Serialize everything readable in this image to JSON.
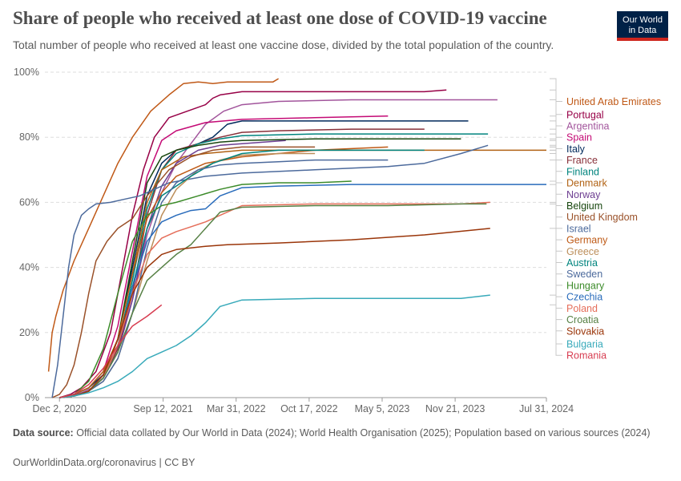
{
  "header": {
    "title": "Share of people who received at least one dose of COVID-19 vaccine",
    "subtitle": "Total number of people who received at least one vaccine dose, divided by the total population of the country.",
    "logo_line1": "Our World",
    "logo_line2": "in Data"
  },
  "footer": {
    "source_label": "Data source:",
    "source_text": "Official data collated by Our World in Data (2024); World Health Organisation (2025); Population based on various sources (2024)",
    "link_text": "OurWorldinData.org/coronavirus | CC BY"
  },
  "chart_data": {
    "type": "line",
    "title": "Share of people who received at least one dose of COVID-19 vaccine",
    "xlabel": "",
    "ylabel": "",
    "ylim": [
      0,
      100
    ],
    "y_ticks": [
      0,
      20,
      40,
      60,
      80,
      100
    ],
    "y_tick_labels": [
      "0%",
      "20%",
      "40%",
      "60%",
      "80%",
      "100%"
    ],
    "x_ticks": [
      0,
      284,
      484,
      684,
      884,
      1084,
      1334
    ],
    "x_tick_labels": [
      "Dec 2, 2020",
      "Sep 12, 2021",
      "Mar 31, 2022",
      "Oct 17, 2022",
      "May 5, 2023",
      "Nov 21, 2023",
      "Jul 31, 2024"
    ],
    "xlim": [
      -40,
      1334
    ],
    "x_unit": "days since Dec 2, 2020",
    "series": [
      {
        "name": "United Arab Emirates",
        "color": "#c05917",
        "label_y": 91,
        "x": [
          -30,
          -20,
          -10,
          10,
          40,
          80,
          120,
          160,
          200,
          250,
          300,
          340,
          380,
          420,
          460,
          540,
          585,
          600
        ],
        "y": [
          8,
          20,
          25,
          33,
          42,
          52,
          62,
          72,
          80,
          88,
          93,
          96.5,
          97,
          96.5,
          97,
          97,
          97,
          98
        ]
      },
      {
        "name": "Portugal",
        "color": "#970046",
        "label_y": 87,
        "x": [
          0,
          30,
          60,
          100,
          140,
          170,
          200,
          230,
          260,
          300,
          350,
          400,
          420,
          440,
          500,
          600,
          700,
          850,
          1000,
          1060
        ],
        "y": [
          0,
          1,
          3,
          8,
          20,
          38,
          56,
          70,
          80,
          86,
          88,
          90,
          92,
          93,
          94,
          94,
          94,
          94,
          94,
          94.5
        ]
      },
      {
        "name": "Argentina",
        "color": "#a2559c",
        "label_y": 83.5,
        "x": [
          0,
          30,
          60,
          90,
          120,
          160,
          200,
          240,
          280,
          320,
          360,
          400,
          450,
          500,
          600,
          800,
          1000,
          1200
        ],
        "y": [
          0,
          0.5,
          1.5,
          3,
          7,
          15,
          30,
          50,
          63,
          72,
          78,
          84,
          88,
          90,
          91,
          91.5,
          91.5,
          91.5
        ]
      },
      {
        "name": "Spain",
        "color": "#c40a75",
        "label_y": 80,
        "x": [
          0,
          40,
          80,
          120,
          160,
          200,
          240,
          280,
          320,
          400,
          500,
          700,
          900
        ],
        "y": [
          0,
          1,
          3,
          8,
          22,
          45,
          68,
          79,
          82,
          84.5,
          85.5,
          86,
          86.5
        ]
      },
      {
        "name": "Italy",
        "color": "#00295b",
        "label_y": 76.5,
        "x": [
          0,
          40,
          80,
          120,
          160,
          200,
          240,
          280,
          320,
          380,
          420,
          460,
          500,
          600,
          800,
          1000,
          1120
        ],
        "y": [
          0,
          1,
          3,
          7,
          18,
          40,
          62,
          72,
          76,
          78,
          80,
          84,
          85,
          85,
          85,
          85,
          85
        ]
      },
      {
        "name": "France",
        "color": "#883039",
        "label_y": 73,
        "x": [
          0,
          40,
          80,
          120,
          160,
          200,
          240,
          280,
          320,
          380,
          440,
          500,
          600,
          800,
          1000
        ],
        "y": [
          0,
          0.5,
          2,
          6,
          15,
          32,
          56,
          70,
          76,
          78,
          80,
          81.5,
          82,
          82.5,
          82.5
        ]
      },
      {
        "name": "Finland",
        "color": "#00847e",
        "label_y": 69.5,
        "x": [
          0,
          40,
          80,
          120,
          160,
          200,
          240,
          280,
          320,
          380,
          440,
          500,
          700,
          900,
          1050,
          1174
        ],
        "y": [
          0,
          0.5,
          2,
          6,
          16,
          36,
          58,
          70,
          75,
          78,
          79.5,
          80.5,
          81,
          81,
          81,
          81
        ]
      },
      {
        "name": "Denmark",
        "color": "#b16214",
        "label_y": 66,
        "x": [
          0,
          40,
          80,
          120,
          160,
          200,
          240,
          280,
          340,
          400,
          500,
          700,
          900,
          1100,
          1334
        ],
        "y": [
          0,
          1,
          3,
          8,
          18,
          38,
          60,
          70,
          74,
          75,
          76,
          76,
          76,
          76,
          76
        ]
      },
      {
        "name": "Norway",
        "color": "#6d3e91",
        "label_y": 62.5,
        "x": [
          0,
          40,
          80,
          120,
          160,
          200,
          240,
          280,
          320,
          380,
          440,
          500,
          560,
          620
        ],
        "y": [
          0,
          0.5,
          2,
          6,
          14,
          30,
          52,
          65,
          72,
          76,
          77.5,
          78,
          78.5,
          79
        ]
      },
      {
        "name": "Belgium",
        "color": "#18470f",
        "label_y": 59,
        "x": [
          0,
          40,
          80,
          120,
          160,
          200,
          240,
          280,
          320,
          380,
          440,
          500,
          700,
          900,
          1100
        ],
        "y": [
          0,
          0.5,
          2,
          6,
          18,
          42,
          66,
          74,
          76,
          77.5,
          78.5,
          79,
          79.5,
          79.5,
          79.5
        ]
      },
      {
        "name": "United Kingdom",
        "color": "#9a5129",
        "label_y": 55.5,
        "x": [
          -20,
          0,
          20,
          40,
          60,
          80,
          100,
          130,
          160,
          200,
          240,
          300,
          360,
          420,
          500,
          600,
          700
        ],
        "y": [
          0,
          1,
          4,
          10,
          20,
          32,
          42,
          48,
          52,
          55,
          62,
          70,
          74,
          76,
          77,
          77,
          77
        ]
      },
      {
        "name": "Israel",
        "color": "#4c6a9c",
        "label_y": 52,
        "x": [
          -20,
          -5,
          5,
          15,
          25,
          40,
          60,
          80,
          100,
          140,
          180,
          220,
          260,
          300,
          400,
          500,
          700,
          900,
          1000,
          1100,
          1174
        ],
        "y": [
          0,
          10,
          20,
          30,
          40,
          50,
          56,
          58,
          59.5,
          60,
          61,
          62,
          64,
          66,
          68,
          69,
          70,
          71,
          72,
          75,
          77.5
        ]
      },
      {
        "name": "Germany",
        "color": "#be5915",
        "label_y": 48.5,
        "x": [
          0,
          40,
          80,
          120,
          160,
          200,
          240,
          280,
          320,
          400,
          500,
          600,
          700,
          800,
          900
        ],
        "y": [
          0,
          0.5,
          2,
          6,
          18,
          38,
          55,
          63,
          68,
          72,
          74,
          75,
          76,
          76.5,
          77
        ]
      },
      {
        "name": "Greece",
        "color": "#bc8e5a",
        "label_y": 45,
        "x": [
          0,
          40,
          80,
          120,
          160,
          200,
          240,
          280,
          320,
          380,
          440,
          500,
          600,
          700
        ],
        "y": [
          0,
          0.5,
          2,
          5,
          12,
          26,
          42,
          56,
          64,
          70,
          73,
          74.5,
          75,
          75
        ]
      },
      {
        "name": "Austria",
        "color": "#00847e",
        "label_y": 41.5,
        "x": [
          0,
          40,
          80,
          120,
          160,
          200,
          240,
          280,
          320,
          360,
          420,
          500,
          600,
          800,
          1000
        ],
        "y": [
          0,
          0.5,
          2,
          6,
          16,
          34,
          52,
          62,
          65,
          68,
          72,
          75,
          76,
          76,
          76
        ]
      },
      {
        "name": "Sweden",
        "color": "#4c6a9c",
        "label_y": 38,
        "x": [
          0,
          40,
          80,
          120,
          160,
          200,
          240,
          280,
          320,
          380,
          440,
          500,
          600,
          700,
          800,
          900
        ],
        "y": [
          0,
          0.5,
          2,
          5,
          12,
          26,
          46,
          60,
          66,
          70,
          71.5,
          72,
          72.5,
          73,
          73,
          73
        ]
      },
      {
        "name": "Hungary",
        "color": "#3c8b2a",
        "label_y": 34.5,
        "x": [
          0,
          40,
          80,
          120,
          160,
          200,
          240,
          280,
          320,
          380,
          440,
          500,
          600,
          700,
          800
        ],
        "y": [
          0,
          1,
          5,
          15,
          32,
          48,
          56,
          59,
          60,
          62,
          64,
          65.5,
          66,
          66,
          66.5
        ]
      },
      {
        "name": "Czechia",
        "color": "#286bbb",
        "label_y": 31,
        "x": [
          0,
          40,
          80,
          120,
          160,
          200,
          240,
          280,
          320,
          360,
          400,
          440,
          500,
          600,
          800,
          1000,
          1200,
          1334
        ],
        "y": [
          0,
          0.5,
          2,
          6,
          16,
          34,
          48,
          54,
          56,
          57.5,
          58,
          62,
          64.5,
          65,
          65.5,
          65.5,
          65.5,
          65.5
        ]
      },
      {
        "name": "Poland",
        "color": "#e56e5a",
        "label_y": 27.5,
        "x": [
          0,
          40,
          80,
          120,
          160,
          200,
          240,
          280,
          320,
          360,
          400,
          440,
          500,
          700,
          900,
          1100,
          1180
        ],
        "y": [
          0,
          0.5,
          2,
          6,
          16,
          32,
          44,
          49,
          51,
          52.5,
          54,
          56,
          59,
          59.5,
          59.5,
          59.5,
          60
        ]
      },
      {
        "name": "Croatia",
        "color": "#578145",
        "label_y": 24,
        "x": [
          0,
          40,
          80,
          120,
          160,
          200,
          240,
          280,
          320,
          360,
          400,
          440,
          500,
          700,
          900,
          1100,
          1170
        ],
        "y": [
          0,
          0.5,
          2,
          6,
          14,
          26,
          36,
          40,
          44,
          47,
          52,
          57,
          58.5,
          59,
          59,
          59.5,
          59.5
        ]
      },
      {
        "name": "Slovakia",
        "color": "#9a3509",
        "label_y": 20.5,
        "x": [
          0,
          40,
          80,
          120,
          160,
          200,
          240,
          280,
          320,
          360,
          400,
          460,
          600,
          800,
          1000,
          1180
        ],
        "y": [
          0,
          0.5,
          2,
          7,
          18,
          32,
          40,
          44,
          45.5,
          46,
          46.5,
          47,
          47.5,
          48.5,
          50,
          52
        ]
      },
      {
        "name": "Bulgaria",
        "color": "#38aaba",
        "label_y": 16.5,
        "x": [
          0,
          40,
          80,
          120,
          160,
          200,
          240,
          280,
          320,
          360,
          400,
          440,
          500,
          700,
          900,
          1100,
          1180
        ],
        "y": [
          0,
          0.5,
          1.5,
          3,
          5,
          8,
          12,
          14,
          16,
          19,
          23,
          28,
          30,
          30.5,
          30.5,
          30.5,
          31.5
        ]
      },
      {
        "name": "Romania",
        "color": "#d73c50",
        "label_y": 13,
        "x": [
          0,
          40,
          80,
          120,
          160,
          200,
          240,
          280
        ],
        "y": [
          0,
          1,
          4,
          9,
          16,
          22,
          25,
          28.5
        ]
      }
    ]
  }
}
